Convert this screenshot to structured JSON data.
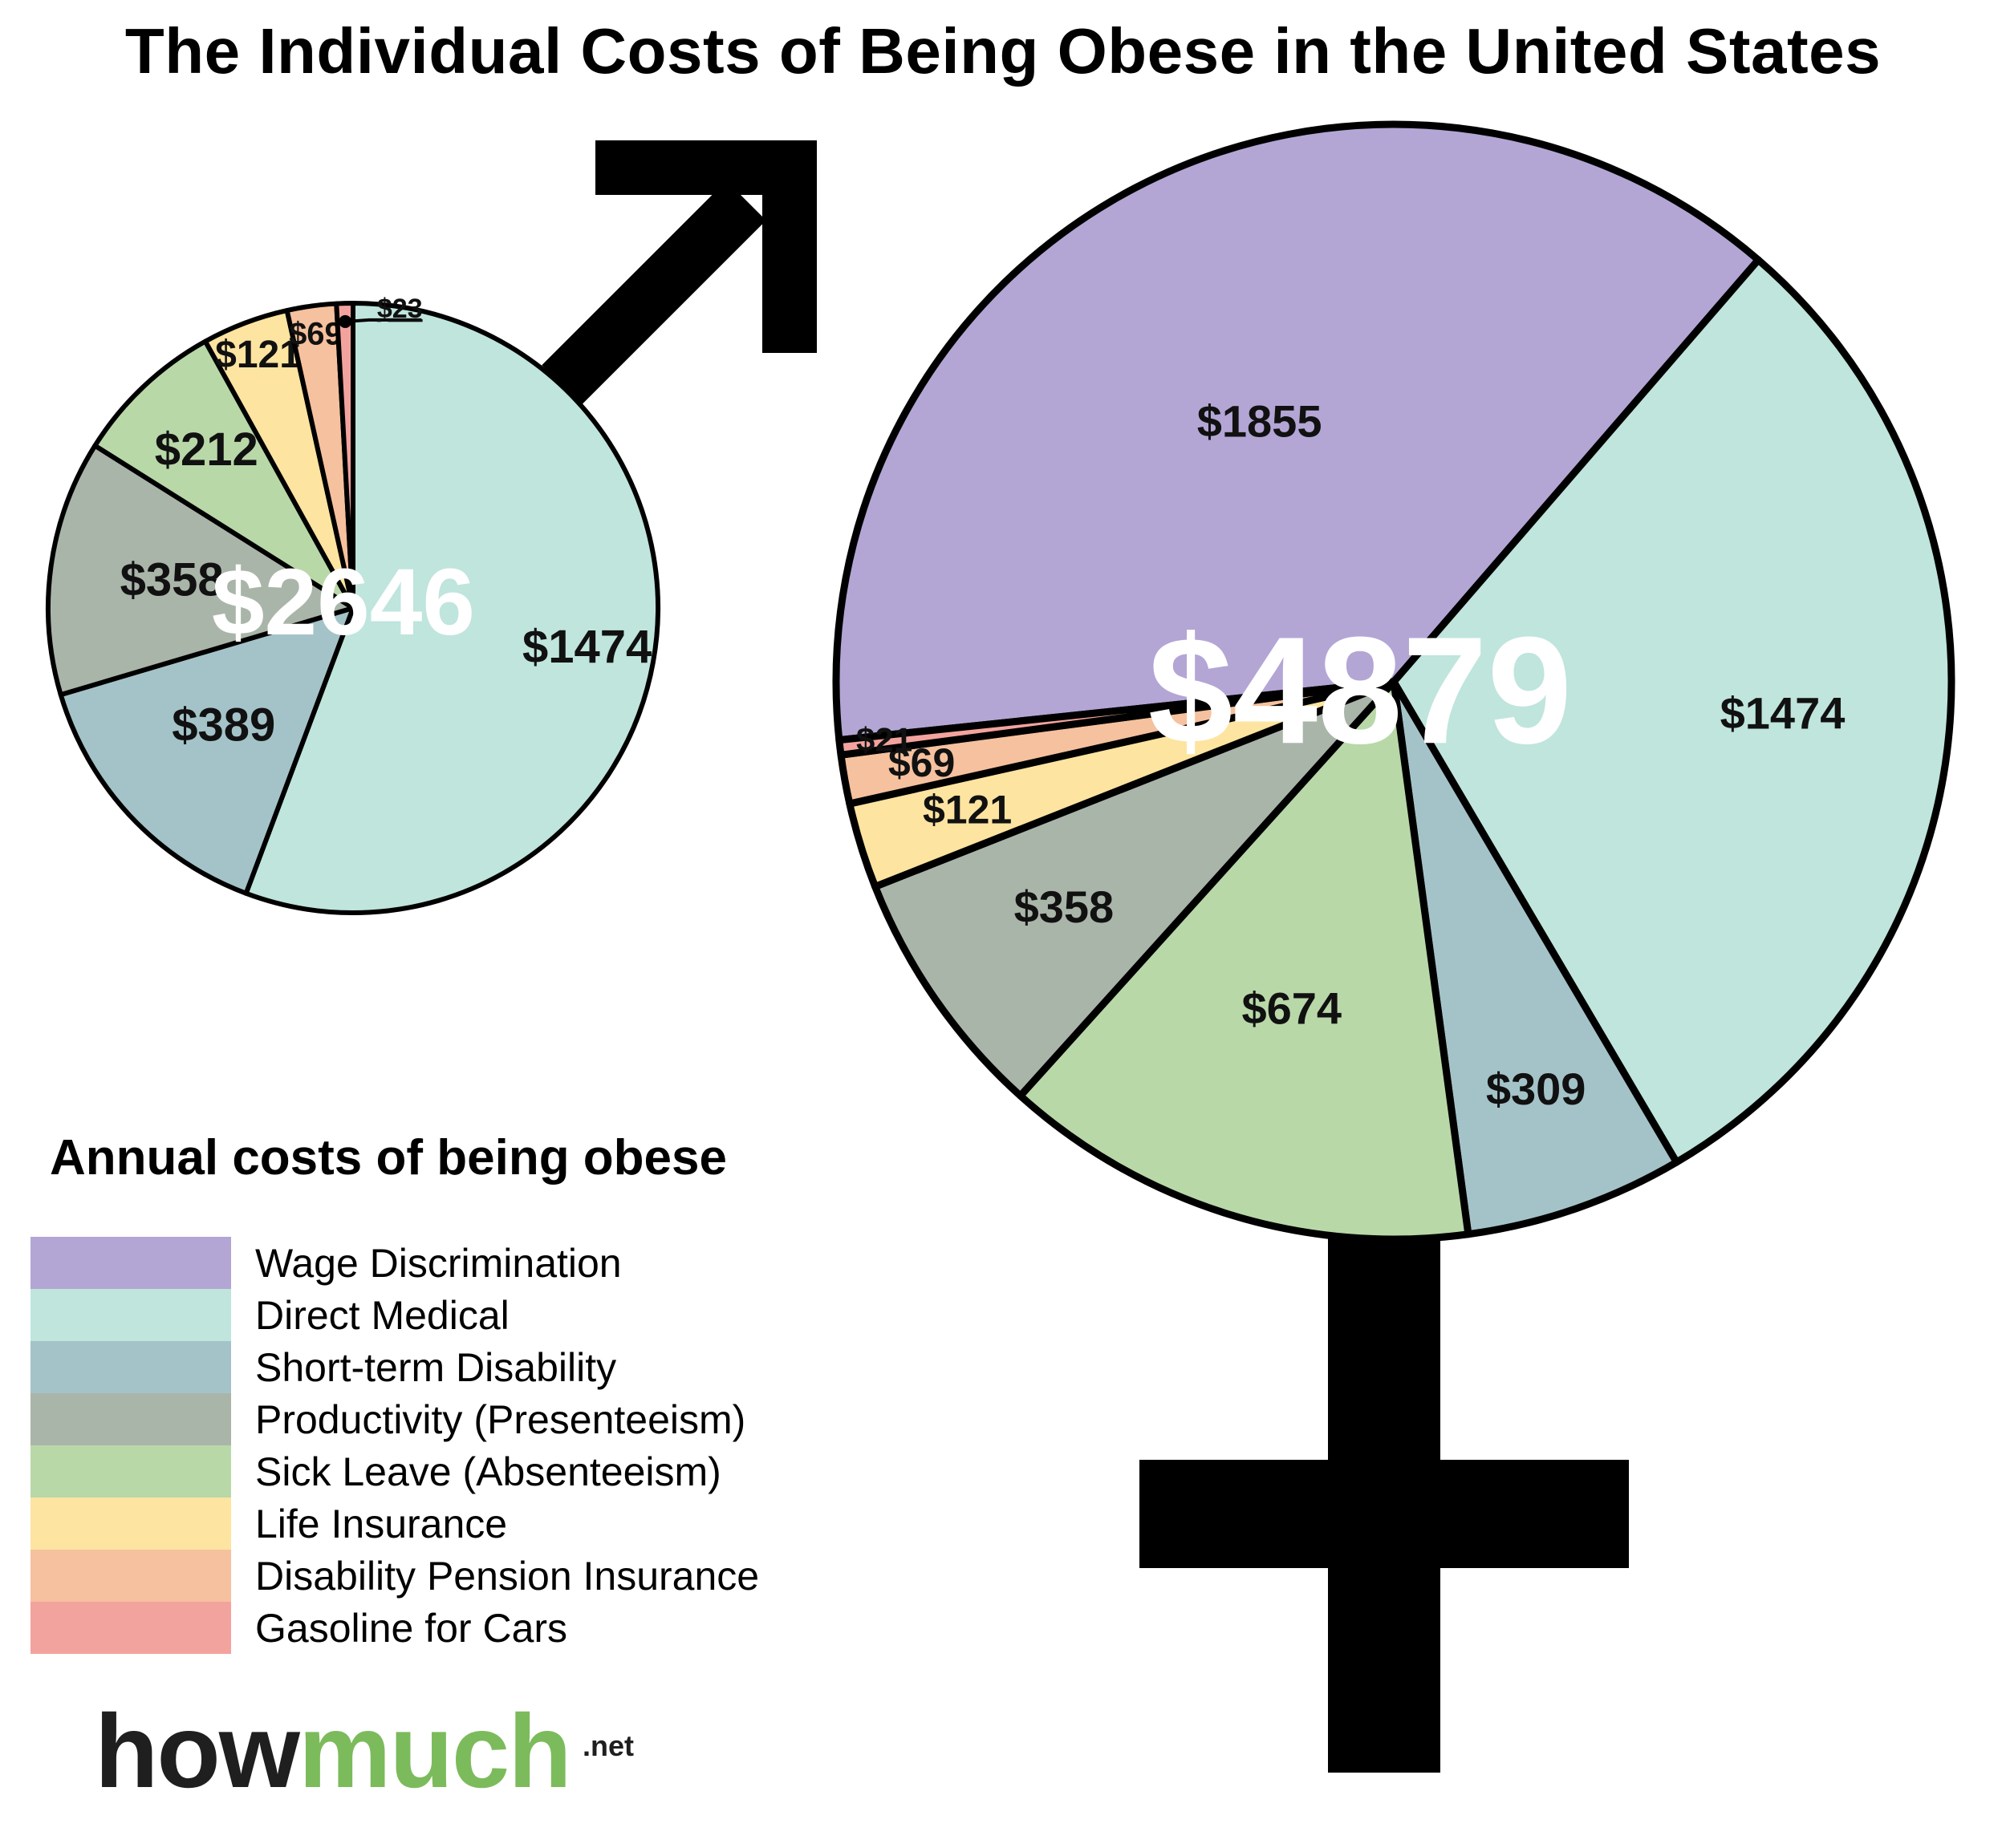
{
  "title": "The Individual Costs of Being Obese in the United States",
  "legend": {
    "title": "Annual costs of being obese",
    "items": [
      {
        "label": "Wage Discrimination",
        "color": "#b3a6d5"
      },
      {
        "label": "Direct Medical",
        "color": "#bfe5dd"
      },
      {
        "label": "Short-term Disability",
        "color": "#a4c3c8"
      },
      {
        "label": "Productivity (Presenteeism)",
        "color": "#aab5aa"
      },
      {
        "label": "Sick Leave (Absenteeism)",
        "color": "#b8d8a8"
      },
      {
        "label": "Life Insurance",
        "color": "#fde4a0"
      },
      {
        "label": "Disability Pension Insurance",
        "color": "#f6c19e"
      },
      {
        "label": "Gasoline for Cars",
        "color": "#f3a39e"
      }
    ]
  },
  "chart_data": [
    {
      "type": "pie",
      "title": "Male",
      "total_label": "$2646",
      "slices": [
        {
          "category": "Direct Medical",
          "value": 1474,
          "label": "$1474"
        },
        {
          "category": "Short-term Disability",
          "value": 389,
          "label": "$389"
        },
        {
          "category": "Productivity (Presenteeism)",
          "value": 358,
          "label": "$358"
        },
        {
          "category": "Sick Leave (Absenteeism)",
          "value": 212,
          "label": "$212"
        },
        {
          "category": "Life Insurance",
          "value": 121,
          "label": "$121"
        },
        {
          "category": "Disability Pension Insurance",
          "value": 69,
          "label": "$69"
        },
        {
          "category": "Gasoline for Cars",
          "value": 23,
          "label": "$23"
        }
      ]
    },
    {
      "type": "pie",
      "title": "Female",
      "total_label": "$4879",
      "slices": [
        {
          "category": "Wage Discrimination",
          "value": 1855,
          "label": "$1855"
        },
        {
          "category": "Direct Medical",
          "value": 1474,
          "label": "$1474"
        },
        {
          "category": "Short-term Disability",
          "value": 309,
          "label": "$309"
        },
        {
          "category": "Sick Leave (Absenteeism)",
          "value": 674,
          "label": "$674"
        },
        {
          "category": "Productivity (Presenteeism)",
          "value": 358,
          "label": "$358"
        },
        {
          "category": "Life Insurance",
          "value": 121,
          "label": "$121"
        },
        {
          "category": "Disability Pension Insurance",
          "value": 69,
          "label": "$69"
        },
        {
          "category": "Gasoline for Cars",
          "value": 21,
          "label": "$21"
        }
      ]
    }
  ],
  "logo": {
    "how": "how",
    "much": "much",
    "net": ".net"
  }
}
